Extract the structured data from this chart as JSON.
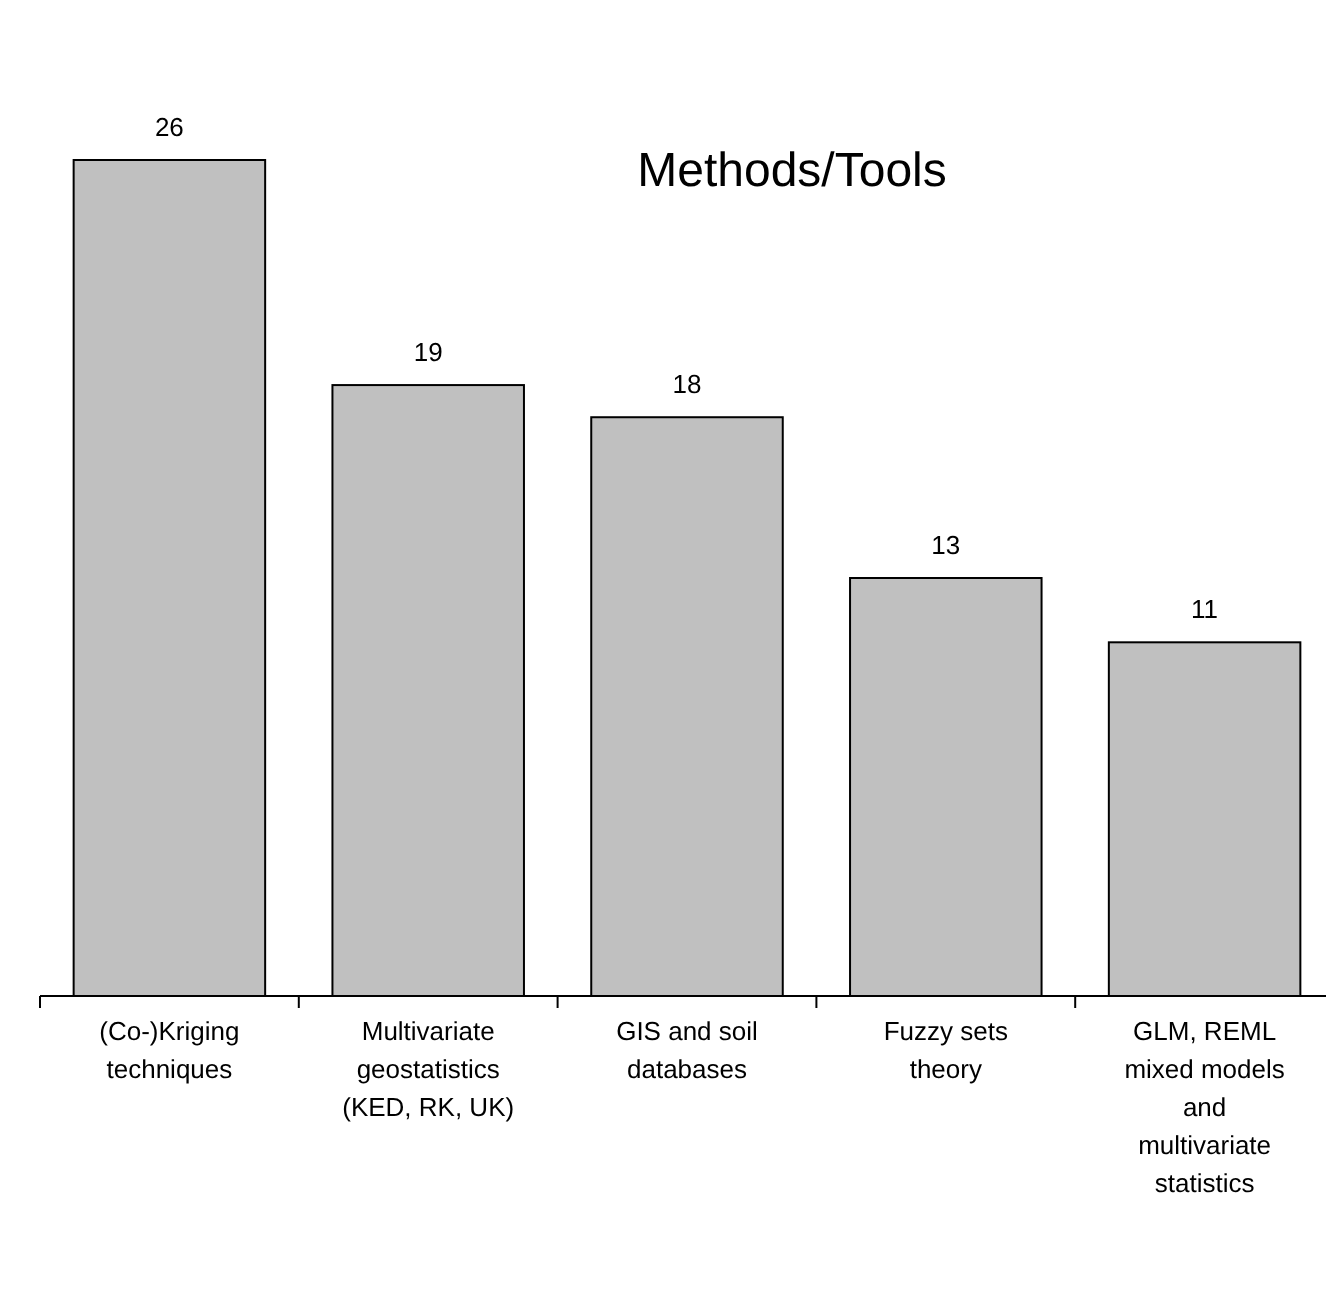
{
  "chart_data": {
    "type": "bar",
    "title": "Methods/Tools",
    "categories": [
      "(Co-)Kriging techniques",
      "Multivariate geostatistics (KED, RK, UK)",
      "GIS and soil databases",
      "Fuzzy sets theory",
      "GLM, REML mixed models and multivariate statistics"
    ],
    "values": [
      26,
      19,
      18,
      13,
      11
    ],
    "color": "#c0c0c0",
    "data_labels": true
  }
}
